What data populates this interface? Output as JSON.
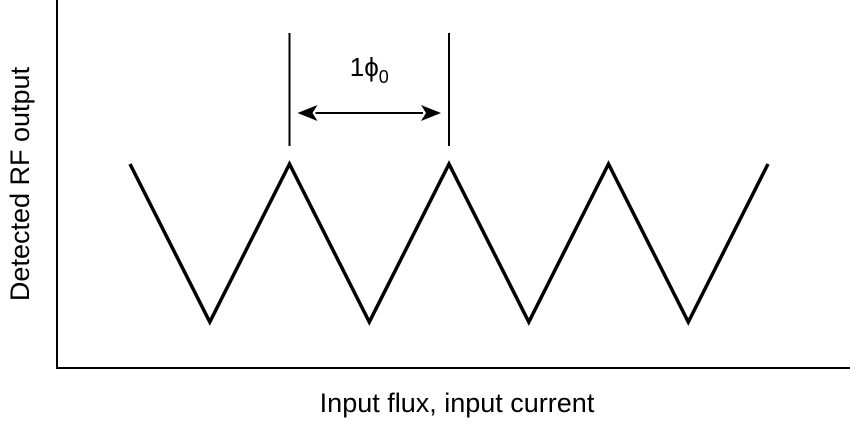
{
  "chart_data": {
    "type": "line",
    "xlabel": "Input flux, input current",
    "ylabel": "Detected RF output",
    "xlim": [
      -1.0,
      3.0
    ],
    "ylim": [
      0,
      1
    ],
    "series": [
      {
        "x": [
          -1.0,
          -0.5,
          0.0,
          0.5,
          1.0,
          1.5,
          2.0,
          2.5,
          3.0
        ],
        "y": [
          1,
          0,
          1,
          0,
          1,
          0,
          1,
          0,
          1
        ]
      }
    ],
    "annotations": [
      {
        "type": "period-marker",
        "x_start": 0.0,
        "x_end": 1.0,
        "text": "1",
        "symbol": "ϕ",
        "subscript": "0"
      }
    ],
    "grid": false,
    "legend": "none"
  }
}
